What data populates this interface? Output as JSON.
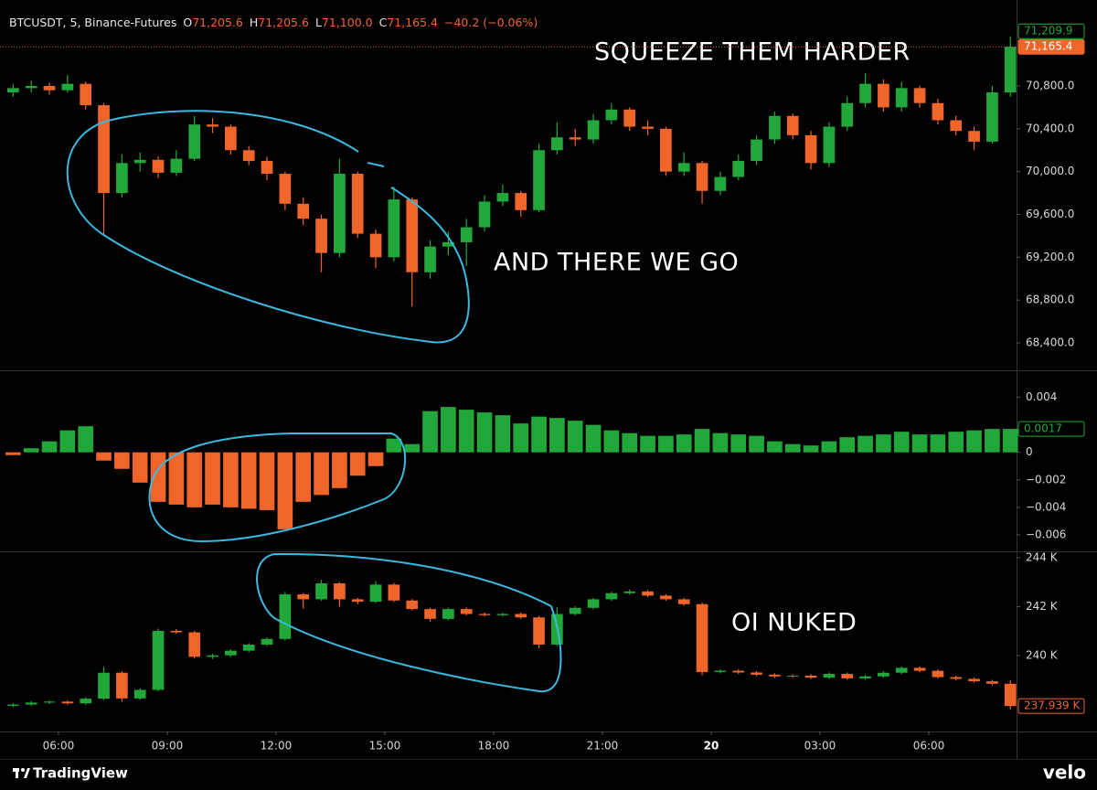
{
  "chart_data": {
    "type": "candlestick",
    "x": [
      4.75,
      5.25,
      5.75,
      6.25,
      6.75,
      7.25,
      7.75,
      8.25,
      8.75,
      9.25,
      9.75,
      10.25,
      10.75,
      11.25,
      11.75,
      12.25,
      12.75,
      13.25,
      13.75,
      14.25,
      14.75,
      15.25,
      15.75,
      16.25,
      16.75,
      17.25,
      17.75,
      18.25,
      18.75,
      19.25,
      19.75,
      20.25,
      20.75,
      21.25,
      21.75,
      22.25,
      22.75,
      23.25,
      23.75,
      24.25,
      24.75,
      25.25,
      25.75,
      26.25,
      26.75,
      27.25,
      27.75,
      28.25,
      28.75,
      29.25,
      29.75,
      30.25,
      30.75,
      31.25,
      31.75,
      32.25
    ],
    "xlim": [
      4.64,
      32.37
    ],
    "xticks": [
      {
        "value": 6,
        "label": "06:00"
      },
      {
        "value": 9,
        "label": "09:00"
      },
      {
        "value": 12,
        "label": "12:00"
      },
      {
        "value": 15,
        "label": "15:00"
      },
      {
        "value": 18,
        "label": "18:00"
      },
      {
        "value": 21,
        "label": "21:00"
      },
      {
        "value": 24,
        "label": "20"
      },
      {
        "value": 27,
        "label": "03:00"
      },
      {
        "value": 30,
        "label": "06:00"
      }
    ],
    "up_color": "#22a83a",
    "down_color": "#f0652a",
    "credits": [
      "TradingView",
      "velo"
    ],
    "panes": [
      {
        "type": "candlestick",
        "symbol": "BTCUSDT, 5, Binance-Futures",
        "ohlc": [
          {
            "key": "O",
            "value": "71,205.6"
          },
          {
            "key": "H",
            "value": "71,205.6"
          },
          {
            "key": "L",
            "value": "71,100.0"
          },
          {
            "key": "C",
            "value": "71,165.4"
          }
        ],
        "change": "−40.2 (−0.06%)",
        "annotations": [
          "SQUEEZE THEM HARDER",
          "AND THERE WE GO"
        ],
        "open": [
          70740,
          70780,
          70800,
          70760,
          70820,
          70620,
          69800,
          70080,
          70110,
          69990,
          70120,
          70440,
          70420,
          70200,
          70100,
          69980,
          69700,
          69560,
          69240,
          69980,
          69420,
          69200,
          69740,
          69060,
          69300,
          69340,
          69480,
          69720,
          69800,
          69640,
          70200,
          70320,
          70300,
          70480,
          70580,
          70420,
          70400,
          70000,
          70080,
          69820,
          69950,
          70100,
          70300,
          70520,
          70340,
          70080,
          70420,
          70640,
          70820,
          70600,
          70780,
          70640,
          70480,
          70380,
          70280,
          70740
        ],
        "high": [
          70820,
          70850,
          70830,
          70900,
          70840,
          70640,
          70160,
          70180,
          70140,
          70200,
          70520,
          70500,
          70440,
          70240,
          70140,
          70000,
          69760,
          69600,
          70120,
          70000,
          69460,
          69860,
          69760,
          69360,
          69440,
          69560,
          69780,
          69880,
          69820,
          70260,
          70460,
          70400,
          70540,
          70640,
          70600,
          70480,
          70420,
          70180,
          70100,
          70000,
          70160,
          70340,
          70560,
          70540,
          70380,
          70460,
          70700,
          70920,
          70860,
          70840,
          70800,
          70680,
          70520,
          70420,
          70800,
          71260
        ],
        "low": [
          70700,
          70740,
          70720,
          70740,
          70580,
          69400,
          69760,
          70000,
          69940,
          69960,
          70100,
          70360,
          70160,
          70060,
          69920,
          69640,
          69500,
          69060,
          69200,
          69380,
          69100,
          69160,
          68740,
          69000,
          69220,
          69120,
          69440,
          69680,
          69580,
          69620,
          70160,
          70240,
          70260,
          70440,
          70380,
          70340,
          69960,
          69960,
          69700,
          69780,
          69920,
          70060,
          70260,
          70300,
          70020,
          70040,
          70380,
          70600,
          70560,
          70560,
          70600,
          70440,
          70340,
          70200,
          70260,
          70700
        ],
        "close": [
          70780,
          70800,
          70760,
          70820,
          70620,
          69800,
          70080,
          70110,
          69990,
          70120,
          70440,
          70420,
          70200,
          70100,
          69980,
          69700,
          69560,
          69240,
          69980,
          69420,
          69200,
          69740,
          69060,
          69300,
          69340,
          69480,
          69720,
          69800,
          69640,
          70200,
          70320,
          70300,
          70480,
          70580,
          70420,
          70400,
          70000,
          70080,
          69820,
          69950,
          70100,
          70300,
          70520,
          70340,
          70080,
          70420,
          70640,
          70820,
          70600,
          70780,
          70640,
          70480,
          70380,
          70280,
          70740,
          71165.4
        ],
        "ylim": [
          68144,
          71603
        ],
        "yticks": [
          {
            "value": 68400,
            "label": "68,400.0"
          },
          {
            "value": 68800,
            "label": "68,800.0"
          },
          {
            "value": 69200,
            "label": "69,200.0"
          },
          {
            "value": 69600,
            "label": "69,600.0"
          },
          {
            "value": 70000,
            "label": "70,000.0"
          },
          {
            "value": 70400,
            "label": "70,400.0"
          },
          {
            "value": 70800,
            "label": "70,800.0"
          }
        ],
        "markers": [
          {
            "value": 71165.4,
            "label": "71,165.4",
            "color": "#f0652a",
            "style": "filled",
            "line": true
          },
          {
            "value": 71209.9,
            "label": "71,209.9",
            "color": "#22a83a",
            "style": "outline"
          }
        ]
      },
      {
        "type": "histogram",
        "values": [
          -0.0002,
          0.0003,
          0.0008,
          0.0016,
          0.0019,
          -0.0006,
          -0.0012,
          -0.0022,
          -0.0036,
          -0.0038,
          -0.004,
          -0.0038,
          -0.004,
          -0.0041,
          -0.0042,
          -0.0056,
          -0.0036,
          -0.0031,
          -0.0026,
          -0.0017,
          -0.001,
          0.001,
          0.0006,
          0.003,
          0.0033,
          0.0031,
          0.0029,
          0.0027,
          0.0021,
          0.0026,
          0.0025,
          0.0023,
          0.002,
          0.0016,
          0.0014,
          0.0012,
          0.0012,
          0.0013,
          0.0017,
          0.0014,
          0.0013,
          0.0012,
          0.0008,
          0.0006,
          0.0005,
          0.0008,
          0.0011,
          0.0012,
          0.0013,
          0.0015,
          0.0013,
          0.0013,
          0.0015,
          0.0016,
          0.0017,
          0.0017
        ],
        "ylim": [
          -0.0072,
          0.0059
        ],
        "yticks": [
          0.004,
          0,
          {
            "value": -0.002,
            "label": "−0.002"
          },
          {
            "value": -0.004,
            "label": "−0.004"
          },
          {
            "value": -0.006,
            "label": "−0.006"
          }
        ],
        "markers": [
          {
            "value": 0.0017,
            "color": "#22a83a",
            "style": "outline"
          }
        ]
      },
      {
        "type": "candlestick",
        "annotations": [
          "OI NUKED"
        ],
        "open": [
          237950,
          238000,
          238080,
          238120,
          238050,
          238240,
          239300,
          238250,
          238600,
          241010,
          240950,
          239950,
          240010,
          240200,
          240450,
          240680,
          242500,
          242300,
          242950,
          242300,
          242200,
          242900,
          242250,
          241900,
          241500,
          241900,
          241700,
          241650,
          241700,
          241560,
          240450,
          241700,
          241950,
          242300,
          242550,
          242620,
          242450,
          242300,
          242100,
          239330,
          239380,
          239310,
          239220,
          239150,
          239180,
          239100,
          239250,
          239070,
          239150,
          239300,
          239500,
          239380,
          239120,
          239050,
          238950,
          238850
        ],
        "high": [
          238060,
          238140,
          238180,
          238180,
          238300,
          239540,
          239360,
          238660,
          241100,
          241080,
          241010,
          240070,
          240260,
          240510,
          240740,
          242600,
          242560,
          243100,
          243010,
          242360,
          243050,
          242960,
          242310,
          241960,
          241960,
          241960,
          241760,
          241760,
          241760,
          241620,
          241980,
          242010,
          242360,
          242610,
          242700,
          242680,
          242510,
          242360,
          242160,
          239440,
          239440,
          239370,
          239280,
          239240,
          239240,
          239310,
          239310,
          239210,
          239360,
          239560,
          239560,
          239440,
          239180,
          239110,
          239010,
          239000
        ],
        "low": [
          237890,
          237940,
          238020,
          237990,
          237990,
          238180,
          238120,
          238190,
          238540,
          240890,
          239890,
          239860,
          239950,
          240140,
          240390,
          240620,
          241920,
          242240,
          242000,
          242100,
          242140,
          242190,
          241840,
          241380,
          241440,
          241640,
          241590,
          241590,
          241500,
          240300,
          240390,
          241640,
          241890,
          242240,
          242490,
          242390,
          242240,
          242040,
          239200,
          239270,
          239250,
          239160,
          239090,
          239090,
          239040,
          239040,
          239010,
          239010,
          239090,
          239240,
          239320,
          239060,
          238990,
          238890,
          238790,
          237800
        ],
        "close": [
          238000,
          238080,
          238120,
          238050,
          238240,
          239300,
          238250,
          238600,
          241010,
          240950,
          239950,
          240010,
          240200,
          240450,
          240680,
          242500,
          242300,
          242950,
          242300,
          242200,
          242900,
          242250,
          241900,
          241500,
          241900,
          241700,
          241650,
          241700,
          241560,
          240450,
          241700,
          241950,
          242300,
          242550,
          242620,
          242450,
          242300,
          242100,
          239330,
          239380,
          239310,
          239220,
          239150,
          239180,
          239100,
          239250,
          239070,
          239150,
          239300,
          239500,
          239380,
          239120,
          239050,
          238950,
          238850,
          237939
        ],
        "ylim": [
          236900,
          244220
        ],
        "yticks": [
          {
            "value": 240000,
            "label": "240 K"
          },
          {
            "value": 242000,
            "label": "242 K"
          },
          {
            "value": 244000,
            "label": "244 K"
          }
        ],
        "markers": [
          {
            "value": 237939,
            "label": "237.939 K",
            "color": "#f0652a",
            "style": "outline"
          }
        ]
      }
    ]
  }
}
